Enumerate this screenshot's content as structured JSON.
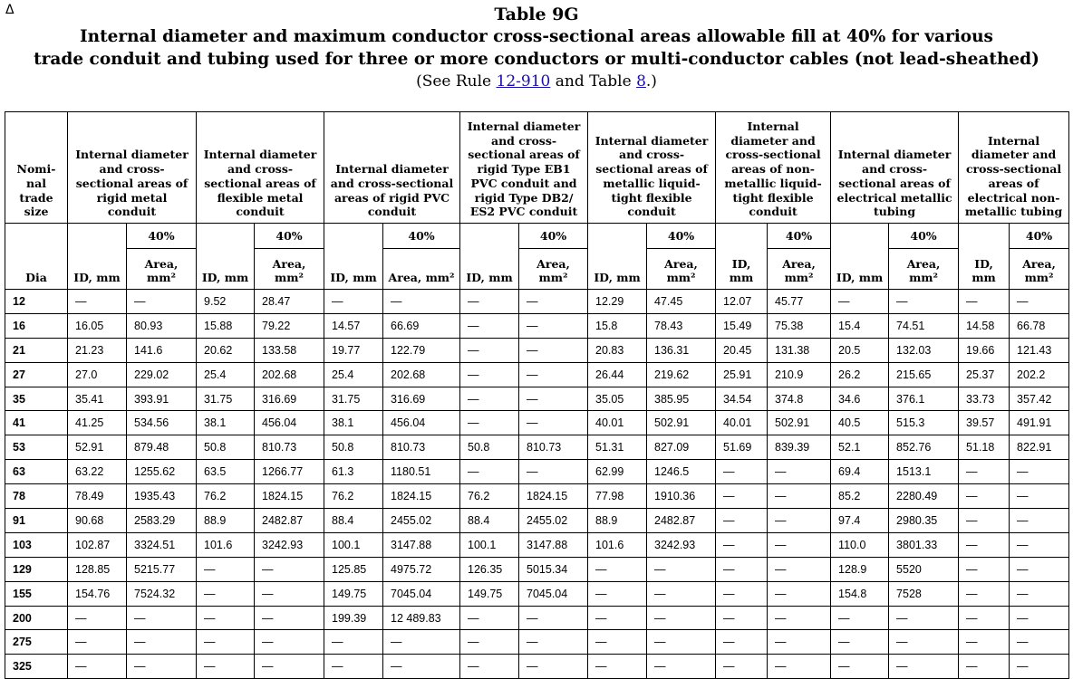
{
  "delta": "Δ",
  "title": "Table 9G",
  "subtitle_line1": "Internal diameter and maximum conductor cross-sectional areas allowable fill at 40% for various",
  "subtitle_line2": "trade conduit and tubing used for three or more conductors or multi-conductor cables (not lead-sheathed)",
  "see_prefix": "(See Rule ",
  "see_link1": "12-910",
  "see_mid": " and Table ",
  "see_link2": "8",
  "see_suffix": ".)",
  "header": {
    "trade_size": "Nomi-nal trade size",
    "groups": [
      "Internal diameter and cross-sectional areas of rigid metal conduit",
      "Internal diameter and cross-sectional areas of flexible metal conduit",
      "Internal diameter and cross-sectional areas of rigid PVC conduit",
      "Internal diameter and cross-sectional areas of rigid Type EB1 PVC conduit and rigid Type DB2/ ES2 PVC conduit",
      "Internal diameter and cross-sectional areas of metallic liquid-tight flexible conduit",
      "Internal diameter and cross-sectional areas of non-metallic liquid-tight flexible conduit",
      "Internal diameter and cross-sectional areas of electrical metallic tubing",
      "Internal diameter and cross-sectional areas of electrical non-metallic tubing"
    ],
    "pct": "40%",
    "dia": "Dia",
    "id_mm": "ID, mm",
    "area_mm2": "Area, mm²"
  },
  "rows": [
    [
      "12",
      "—",
      "—",
      "9.52",
      "28.47",
      "—",
      "—",
      "—",
      "—",
      "12.29",
      "47.45",
      "12.07",
      "45.77",
      "—",
      "—",
      "—",
      "—"
    ],
    [
      "16",
      "16.05",
      "80.93",
      "15.88",
      "79.22",
      "14.57",
      "66.69",
      "—",
      "—",
      "15.8",
      "78.43",
      "15.49",
      "75.38",
      "15.4",
      "74.51",
      "14.58",
      "66.78"
    ],
    [
      "21",
      "21.23",
      "141.6",
      "20.62",
      "133.58",
      "19.77",
      "122.79",
      "—",
      "—",
      "20.83",
      "136.31",
      "20.45",
      "131.38",
      "20.5",
      "132.03",
      "19.66",
      "121.43"
    ],
    [
      "27",
      "27.0",
      "229.02",
      "25.4",
      "202.68",
      "25.4",
      "202.68",
      "—",
      "—",
      "26.44",
      "219.62",
      "25.91",
      "210.9",
      "26.2",
      "215.65",
      "25.37",
      "202.2"
    ],
    [
      "35",
      "35.41",
      "393.91",
      "31.75",
      "316.69",
      "31.75",
      "316.69",
      "—",
      "—",
      "35.05",
      "385.95",
      "34.54",
      "374.8",
      "34.6",
      "376.1",
      "33.73",
      "357.42"
    ],
    [
      "41",
      "41.25",
      "534.56",
      "38.1",
      "456.04",
      "38.1",
      "456.04",
      "—",
      "—",
      "40.01",
      "502.91",
      "40.01",
      "502.91",
      "40.5",
      "515.3",
      "39.57",
      "491.91"
    ],
    [
      "53",
      "52.91",
      "879.48",
      "50.8",
      "810.73",
      "50.8",
      "810.73",
      "50.8",
      "810.73",
      "51.31",
      "827.09",
      "51.69",
      "839.39",
      "52.1",
      "852.76",
      "51.18",
      "822.91"
    ],
    [
      "63",
      "63.22",
      "1255.62",
      "63.5",
      "1266.77",
      "61.3",
      "1180.51",
      "—",
      "—",
      "62.99",
      "1246.5",
      "—",
      "—",
      "69.4",
      "1513.1",
      "—",
      "—"
    ],
    [
      "78",
      "78.49",
      "1935.43",
      "76.2",
      "1824.15",
      "76.2",
      "1824.15",
      "76.2",
      "1824.15",
      "77.98",
      "1910.36",
      "—",
      "—",
      "85.2",
      "2280.49",
      "—",
      "—"
    ],
    [
      "91",
      "90.68",
      "2583.29",
      "88.9",
      "2482.87",
      "88.4",
      "2455.02",
      "88.4",
      "2455.02",
      "88.9",
      "2482.87",
      "—",
      "—",
      "97.4",
      "2980.35",
      "—",
      "—"
    ],
    [
      "103",
      "102.87",
      "3324.51",
      "101.6",
      "3242.93",
      "100.1",
      "3147.88",
      "100.1",
      "3147.88",
      "101.6",
      "3242.93",
      "—",
      "—",
      "110.0",
      "3801.33",
      "—",
      "—"
    ],
    [
      "129",
      "128.85",
      "5215.77",
      "—",
      "—",
      "125.85",
      "4975.72",
      "126.35",
      "5015.34",
      "—",
      "—",
      "—",
      "—",
      "128.9",
      "5520",
      "—",
      "—"
    ],
    [
      "155",
      "154.76",
      "7524.32",
      "—",
      "—",
      "149.75",
      "7045.04",
      "149.75",
      "7045.04",
      "—",
      "—",
      "—",
      "—",
      "154.8",
      "7528",
      "—",
      "—"
    ],
    [
      "200",
      "—",
      "—",
      "—",
      "—",
      "199.39",
      "12 489.83",
      "—",
      "—",
      "—",
      "—",
      "—",
      "—",
      "—",
      "—",
      "—",
      "—"
    ],
    [
      "275",
      "—",
      "—",
      "—",
      "—",
      "—",
      "—",
      "—",
      "—",
      "—",
      "—",
      "—",
      "—",
      "—",
      "—",
      "—",
      "—"
    ],
    [
      "325",
      "—",
      "—",
      "—",
      "—",
      "—",
      "—",
      "—",
      "—",
      "—",
      "—",
      "—",
      "—",
      "—",
      "—",
      "—",
      "—"
    ]
  ]
}
